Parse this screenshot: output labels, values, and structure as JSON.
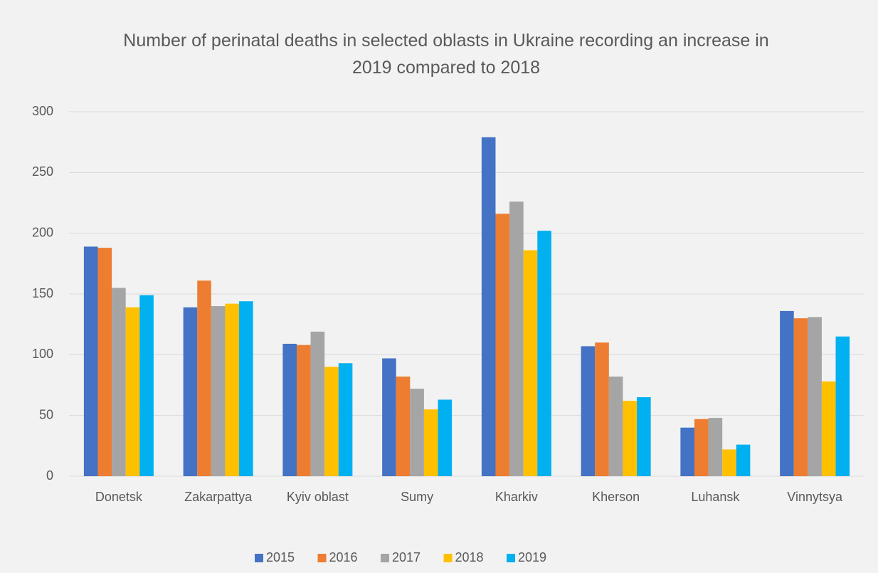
{
  "chart_data": {
    "type": "bar",
    "title": "Number of perinatal deaths in selected oblasts in Ukraine recording an increase in 2019 compared to 2018",
    "categories": [
      "Donetsk",
      "Zakarpattya",
      "Kyiv oblast",
      "Sumy",
      "Kharkiv",
      "Kherson",
      "Luhansk",
      "Vinnytsya"
    ],
    "series": [
      {
        "name": "2015",
        "color": "#4472c4",
        "values": [
          189,
          139,
          109,
          97,
          279,
          107,
          40,
          136
        ]
      },
      {
        "name": "2016",
        "color": "#ed7d31",
        "values": [
          188,
          161,
          108,
          82,
          216,
          110,
          47,
          130
        ]
      },
      {
        "name": "2017",
        "color": "#a5a5a5",
        "values": [
          155,
          140,
          119,
          72,
          226,
          82,
          48,
          131
        ]
      },
      {
        "name": "2018",
        "color": "#ffc000",
        "values": [
          139,
          142,
          90,
          55,
          186,
          62,
          22,
          78
        ]
      },
      {
        "name": "2019",
        "color": "#00b0f0",
        "values": [
          149,
          144,
          93,
          63,
          202,
          65,
          26,
          115
        ]
      }
    ],
    "ylim": [
      0,
      300
    ],
    "yticks": [
      0,
      50,
      100,
      150,
      200,
      250,
      300
    ],
    "grid": true,
    "legend": "bottom"
  }
}
